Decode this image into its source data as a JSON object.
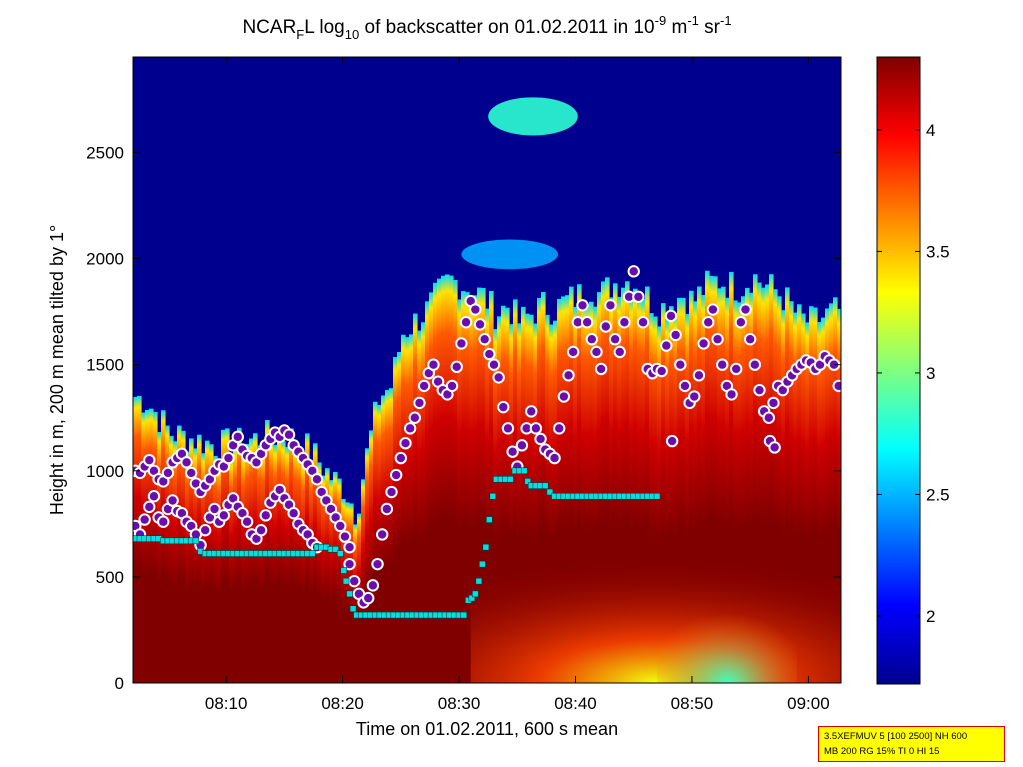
{
  "chart_data": {
    "type": "heatmap",
    "title": {
      "prefix": "NCAR",
      "subscript_1": "F",
      "mid": "L log",
      "subscript_2": "10",
      "text": " of backscatter on 01.02.2011 in 10",
      "sup_1": "-9",
      "unit_1": " m",
      "sup_2": "-1",
      "unit_2": " sr",
      "sup_3": "-1"
    },
    "xlabel": "Time on 01.02.2011, 600 s mean",
    "ylabel": "Height in m, 200 m mean tilted by 1°",
    "x_ticks": [
      "08:10",
      "08:20",
      "08:30",
      "08:40",
      "08:50",
      "09:00"
    ],
    "x_tick_values_min": [
      10,
      20,
      30,
      40,
      50,
      60
    ],
    "xlim_min": [
      2,
      62.8
    ],
    "y_ticks": [
      0,
      500,
      1000,
      1500,
      2000,
      2500
    ],
    "ylim": [
      0,
      2950
    ],
    "colorbar": {
      "colormap": "jet",
      "range": [
        1.72,
        4.3
      ],
      "ticks": [
        2,
        2.5,
        3,
        3.5,
        4
      ]
    },
    "background_level": 1.72,
    "cloud_top_height_m": [
      [
        2,
        1350
      ],
      [
        3,
        1330
      ],
      [
        5,
        1180
      ],
      [
        7,
        1150
      ],
      [
        9,
        1120
      ],
      [
        11,
        1130
      ],
      [
        13,
        1160
      ],
      [
        15,
        1170
      ],
      [
        17,
        1100
      ],
      [
        19,
        960
      ],
      [
        20,
        920
      ],
      [
        21,
        800
      ],
      [
        22,
        1100
      ],
      [
        23,
        1350
      ],
      [
        24,
        1400
      ],
      [
        25,
        1650
      ],
      [
        26,
        1700
      ],
      [
        27,
        1750
      ],
      [
        28,
        1830
      ],
      [
        29,
        1900
      ],
      [
        30,
        1880
      ],
      [
        31,
        1850
      ],
      [
        32,
        1820
      ],
      [
        33,
        1740
      ],
      [
        34,
        1780
      ],
      [
        35,
        1700
      ],
      [
        36,
        1740
      ],
      [
        37,
        1780
      ],
      [
        38,
        1760
      ],
      [
        39,
        1800
      ],
      [
        40,
        1820
      ],
      [
        41,
        1870
      ],
      [
        42,
        1830
      ],
      [
        43,
        1880
      ],
      [
        44,
        1900
      ],
      [
        45,
        1880
      ],
      [
        46,
        1820
      ],
      [
        47,
        1760
      ],
      [
        48,
        1790
      ],
      [
        49,
        1830
      ],
      [
        50,
        1800
      ],
      [
        51,
        1870
      ],
      [
        52,
        1900
      ],
      [
        53,
        1880
      ],
      [
        54,
        1860
      ],
      [
        55,
        1920
      ],
      [
        56,
        1880
      ],
      [
        57,
        1850
      ],
      [
        58,
        1800
      ],
      [
        59,
        1720
      ],
      [
        60,
        1700
      ],
      [
        61,
        1720
      ],
      [
        62,
        1750
      ],
      [
        62.8,
        1760
      ]
    ],
    "upper_cloud": {
      "x_min": [
        32.5,
        40.2
      ],
      "y_m": [
        2580,
        2760
      ],
      "level": 2.8
    },
    "mid_cloud": {
      "x_min": [
        30.2,
        38.5
      ],
      "y_m": [
        1950,
        2090
      ],
      "level": 2.45
    },
    "purple_dots": [
      [
        2.2,
        1000
      ],
      [
        2.6,
        990
      ],
      [
        3,
        1020
      ],
      [
        3.4,
        1050
      ],
      [
        3.8,
        1000
      ],
      [
        4.2,
        960
      ],
      [
        4.6,
        950
      ],
      [
        5,
        990
      ],
      [
        5.4,
        1040
      ],
      [
        5.8,
        1060
      ],
      [
        6.2,
        1080
      ],
      [
        6.6,
        1040
      ],
      [
        7,
        990
      ],
      [
        7.4,
        940
      ],
      [
        7.8,
        900
      ],
      [
        8.2,
        930
      ],
      [
        8.6,
        960
      ],
      [
        9,
        1000
      ],
      [
        9.4,
        1030
      ],
      [
        9.8,
        1020
      ],
      [
        10.2,
        1060
      ],
      [
        10.6,
        1120
      ],
      [
        11,
        1160
      ],
      [
        11.4,
        1100
      ],
      [
        11.8,
        1070
      ],
      [
        12.2,
        1060
      ],
      [
        12.6,
        1040
      ],
      [
        13,
        1080
      ],
      [
        13.4,
        1120
      ],
      [
        13.8,
        1150
      ],
      [
        14.2,
        1180
      ],
      [
        14.6,
        1160
      ],
      [
        15,
        1190
      ],
      [
        15.4,
        1170
      ],
      [
        15.8,
        1120
      ],
      [
        16.2,
        1090
      ],
      [
        16.6,
        1060
      ],
      [
        17,
        1030
      ],
      [
        17.4,
        1000
      ],
      [
        17.8,
        960
      ],
      [
        18.2,
        900
      ],
      [
        18.6,
        860
      ],
      [
        19,
        820
      ],
      [
        19.4,
        780
      ],
      [
        19.8,
        740
      ],
      [
        20.2,
        690
      ],
      [
        20.6,
        640
      ],
      [
        2.2,
        740
      ],
      [
        2.6,
        700
      ],
      [
        3,
        770
      ],
      [
        3.4,
        830
      ],
      [
        3.8,
        880
      ],
      [
        4.2,
        780
      ],
      [
        4.6,
        760
      ],
      [
        5,
        820
      ],
      [
        5.4,
        860
      ],
      [
        5.8,
        810
      ],
      [
        6.2,
        800
      ],
      [
        6.6,
        760
      ],
      [
        7,
        740
      ],
      [
        7.4,
        700
      ],
      [
        7.8,
        650
      ],
      [
        8.2,
        720
      ],
      [
        8.6,
        780
      ],
      [
        9,
        820
      ],
      [
        9.4,
        760
      ],
      [
        9.8,
        790
      ],
      [
        10.2,
        840
      ],
      [
        10.6,
        870
      ],
      [
        11,
        830
      ],
      [
        11.4,
        800
      ],
      [
        11.8,
        760
      ],
      [
        12.2,
        700
      ],
      [
        12.6,
        680
      ],
      [
        13,
        720
      ],
      [
        13.4,
        790
      ],
      [
        13.8,
        850
      ],
      [
        14.2,
        880
      ],
      [
        14.6,
        910
      ],
      [
        15,
        870
      ],
      [
        15.4,
        840
      ],
      [
        15.8,
        800
      ],
      [
        16.2,
        750
      ],
      [
        16.6,
        720
      ],
      [
        17,
        700
      ],
      [
        17.4,
        660
      ],
      [
        17.8,
        640
      ],
      [
        20.6,
        560
      ],
      [
        21,
        480
      ],
      [
        21.4,
        420
      ],
      [
        21.8,
        380
      ],
      [
        22.2,
        400
      ],
      [
        22.6,
        460
      ],
      [
        23,
        560
      ],
      [
        23.4,
        700
      ],
      [
        23.8,
        820
      ],
      [
        24.2,
        900
      ],
      [
        24.6,
        980
      ],
      [
        25,
        1060
      ],
      [
        25.4,
        1130
      ],
      [
        25.8,
        1200
      ],
      [
        26.2,
        1250
      ],
      [
        26.6,
        1320
      ],
      [
        27,
        1400
      ],
      [
        27.4,
        1460
      ],
      [
        27.8,
        1500
      ],
      [
        28.2,
        1420
      ],
      [
        28.6,
        1380
      ],
      [
        29,
        1360
      ],
      [
        29.4,
        1400
      ],
      [
        29.8,
        1490
      ],
      [
        30.2,
        1600
      ],
      [
        30.6,
        1700
      ],
      [
        31,
        1800
      ],
      [
        31.4,
        1760
      ],
      [
        31.8,
        1690
      ],
      [
        32.2,
        1620
      ],
      [
        32.6,
        1550
      ],
      [
        33,
        1500
      ],
      [
        33.4,
        1440
      ],
      [
        33.8,
        1300
      ],
      [
        34.2,
        1200
      ],
      [
        34.6,
        1090
      ],
      [
        35,
        1020
      ],
      [
        35.4,
        1120
      ],
      [
        35.8,
        1200
      ],
      [
        36.2,
        1280
      ],
      [
        36.6,
        1200
      ],
      [
        37,
        1150
      ],
      [
        37.4,
        1100
      ],
      [
        37.8,
        1080
      ],
      [
        38.2,
        1060
      ],
      [
        38.6,
        1200
      ],
      [
        39,
        1350
      ],
      [
        39.4,
        1450
      ],
      [
        39.8,
        1560
      ],
      [
        40.2,
        1700
      ],
      [
        40.6,
        1780
      ],
      [
        41,
        1700
      ],
      [
        41.4,
        1620
      ],
      [
        41.8,
        1560
      ],
      [
        42.2,
        1480
      ],
      [
        42.6,
        1680
      ],
      [
        43,
        1780
      ],
      [
        43.4,
        1620
      ],
      [
        43.8,
        1560
      ],
      [
        44.2,
        1700
      ],
      [
        44.6,
        1820
      ],
      [
        45,
        1940
      ],
      [
        45.4,
        1820
      ],
      [
        45.8,
        1700
      ],
      [
        46.2,
        1480
      ],
      [
        46.6,
        1460
      ],
      [
        47,
        1480
      ],
      [
        47.4,
        1470
      ],
      [
        47.8,
        1590
      ],
      [
        48.2,
        1730
      ],
      [
        48.6,
        1640
      ],
      [
        49,
        1500
      ],
      [
        49.4,
        1400
      ],
      [
        49.8,
        1320
      ],
      [
        50.2,
        1350
      ],
      [
        50.6,
        1450
      ],
      [
        51,
        1600
      ],
      [
        51.4,
        1700
      ],
      [
        51.8,
        1760
      ],
      [
        52.2,
        1620
      ],
      [
        52.6,
        1500
      ],
      [
        53,
        1400
      ],
      [
        53.4,
        1360
      ],
      [
        53.8,
        1480
      ],
      [
        54.2,
        1700
      ],
      [
        54.6,
        1760
      ],
      [
        55,
        1620
      ],
      [
        55.4,
        1500
      ],
      [
        55.8,
        1380
      ],
      [
        56.2,
        1280
      ],
      [
        56.6,
        1250
      ],
      [
        57,
        1320
      ],
      [
        57.4,
        1400
      ],
      [
        57.8,
        1380
      ],
      [
        58.2,
        1420
      ],
      [
        58.6,
        1450
      ],
      [
        59,
        1480
      ],
      [
        59.4,
        1500
      ],
      [
        59.8,
        1520
      ],
      [
        60.2,
        1510
      ],
      [
        60.6,
        1480
      ],
      [
        61,
        1500
      ],
      [
        61.4,
        1540
      ],
      [
        61.8,
        1520
      ],
      [
        62.2,
        1500
      ],
      [
        62.6,
        1400
      ],
      [
        48.3,
        1140
      ],
      [
        56.7,
        1140
      ],
      [
        57.1,
        1110
      ]
    ],
    "cyan_squares": [
      [
        2.2,
        680
      ],
      [
        2.6,
        680
      ],
      [
        3,
        680
      ],
      [
        3.4,
        680
      ],
      [
        3.8,
        680
      ],
      [
        4.2,
        680
      ],
      [
        4.6,
        670
      ],
      [
        5,
        670
      ],
      [
        5.4,
        670
      ],
      [
        5.8,
        670
      ],
      [
        6.2,
        670
      ],
      [
        6.6,
        670
      ],
      [
        7,
        670
      ],
      [
        7.4,
        670
      ],
      [
        7.8,
        620
      ],
      [
        8.2,
        610
      ],
      [
        8.6,
        610
      ],
      [
        9,
        610
      ],
      [
        9.4,
        610
      ],
      [
        9.8,
        610
      ],
      [
        10.2,
        610
      ],
      [
        10.6,
        610
      ],
      [
        11,
        610
      ],
      [
        11.4,
        610
      ],
      [
        11.8,
        610
      ],
      [
        12.2,
        610
      ],
      [
        12.6,
        610
      ],
      [
        13,
        610
      ],
      [
        13.4,
        610
      ],
      [
        13.8,
        610
      ],
      [
        14.2,
        610
      ],
      [
        14.6,
        610
      ],
      [
        15,
        610
      ],
      [
        15.4,
        610
      ],
      [
        15.8,
        610
      ],
      [
        16.2,
        610
      ],
      [
        16.6,
        610
      ],
      [
        17,
        610
      ],
      [
        17.4,
        610
      ],
      [
        17.8,
        640
      ],
      [
        18.2,
        640
      ],
      [
        18.6,
        640
      ],
      [
        19,
        630
      ],
      [
        19.4,
        630
      ],
      [
        19.8,
        610
      ],
      [
        20.1,
        530
      ],
      [
        20.3,
        480
      ],
      [
        20.6,
        420
      ],
      [
        20.9,
        350
      ],
      [
        21.2,
        320
      ],
      [
        21.6,
        320
      ],
      [
        22,
        320
      ],
      [
        22.4,
        320
      ],
      [
        22.8,
        320
      ],
      [
        23.2,
        320
      ],
      [
        23.6,
        320
      ],
      [
        24,
        320
      ],
      [
        24.4,
        320
      ],
      [
        24.8,
        320
      ],
      [
        25.2,
        320
      ],
      [
        25.6,
        320
      ],
      [
        26,
        320
      ],
      [
        26.4,
        320
      ],
      [
        26.8,
        320
      ],
      [
        27.2,
        320
      ],
      [
        27.6,
        320
      ],
      [
        28,
        320
      ],
      [
        28.4,
        320
      ],
      [
        28.8,
        320
      ],
      [
        29.2,
        320
      ],
      [
        29.6,
        320
      ],
      [
        30,
        320
      ],
      [
        30.4,
        320
      ],
      [
        30.8,
        390
      ],
      [
        31.1,
        400
      ],
      [
        31.4,
        420
      ],
      [
        31.7,
        480
      ],
      [
        32,
        560
      ],
      [
        32.3,
        640
      ],
      [
        32.6,
        770
      ],
      [
        32.9,
        880
      ],
      [
        33.2,
        960
      ],
      [
        33.6,
        960
      ],
      [
        34,
        960
      ],
      [
        34.4,
        960
      ],
      [
        34.8,
        1000
      ],
      [
        35.2,
        1000
      ],
      [
        35.6,
        1000
      ],
      [
        35.9,
        950
      ],
      [
        36.2,
        930
      ],
      [
        36.6,
        930
      ],
      [
        37,
        930
      ],
      [
        37.4,
        930
      ],
      [
        37.8,
        900
      ],
      [
        38.2,
        880
      ],
      [
        38.6,
        880
      ],
      [
        39,
        880
      ],
      [
        39.4,
        880
      ],
      [
        39.8,
        880
      ],
      [
        40.2,
        880
      ],
      [
        40.6,
        880
      ],
      [
        41,
        880
      ],
      [
        41.4,
        880
      ],
      [
        41.8,
        880
      ],
      [
        42.2,
        880
      ],
      [
        42.6,
        880
      ],
      [
        43,
        880
      ],
      [
        43.4,
        880
      ],
      [
        43.8,
        880
      ],
      [
        44.2,
        880
      ],
      [
        44.6,
        880
      ],
      [
        45,
        880
      ],
      [
        45.4,
        880
      ],
      [
        45.8,
        880
      ],
      [
        46.2,
        880
      ],
      [
        46.6,
        880
      ],
      [
        47,
        880
      ]
    ]
  },
  "info_box": {
    "line1": "3.5XEFMUV 5 [100 2500] NH 600",
    "line2": "MB 200 RG 15% TI 0 HI 15"
  },
  "colors": {
    "info_box_bg": "#ffff00",
    "info_box_border": "#e00000",
    "dot_fill": "#6a0dad",
    "square_fill": "#00e0e0"
  }
}
